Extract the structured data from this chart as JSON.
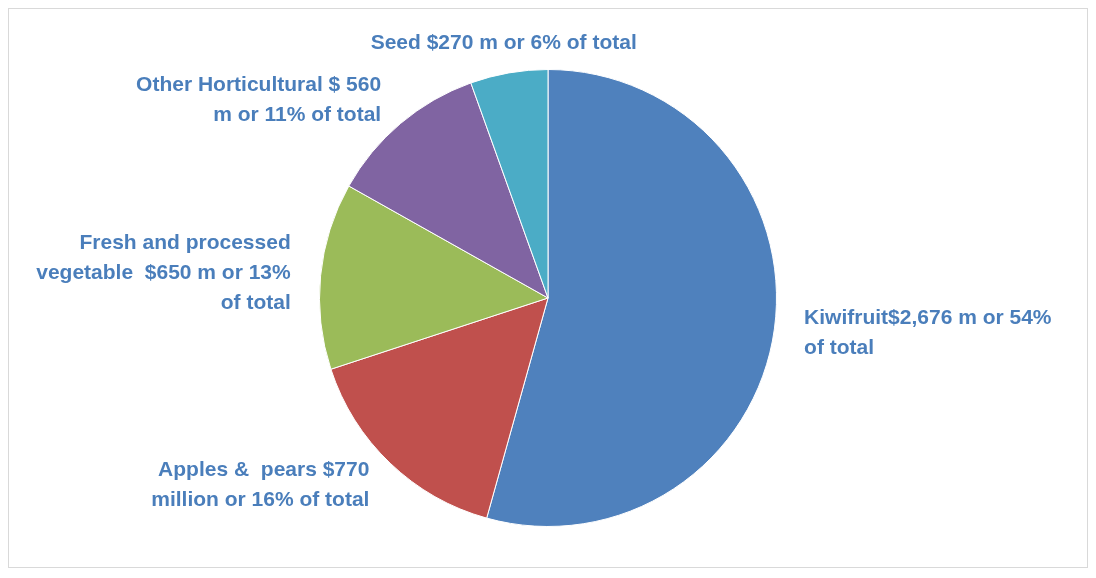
{
  "chart_data": {
    "type": "pie",
    "categories": [
      "Kiwifruit$2,676 m or 54% of total",
      "Apples &  pears $770 million or 16% of total",
      "Fresh and processed vegetable  $650 m or 13% of total",
      "Other Horticultural $ 560 m or 11% of total",
      "Seed $270 m or 6% of total"
    ],
    "values": [
      2676,
      770,
      650,
      560,
      270
    ],
    "colors": [
      "#4f81bd",
      "#c0504d",
      "#9bbb59",
      "#8064a2",
      "#4bacc6"
    ],
    "legend": false
  }
}
